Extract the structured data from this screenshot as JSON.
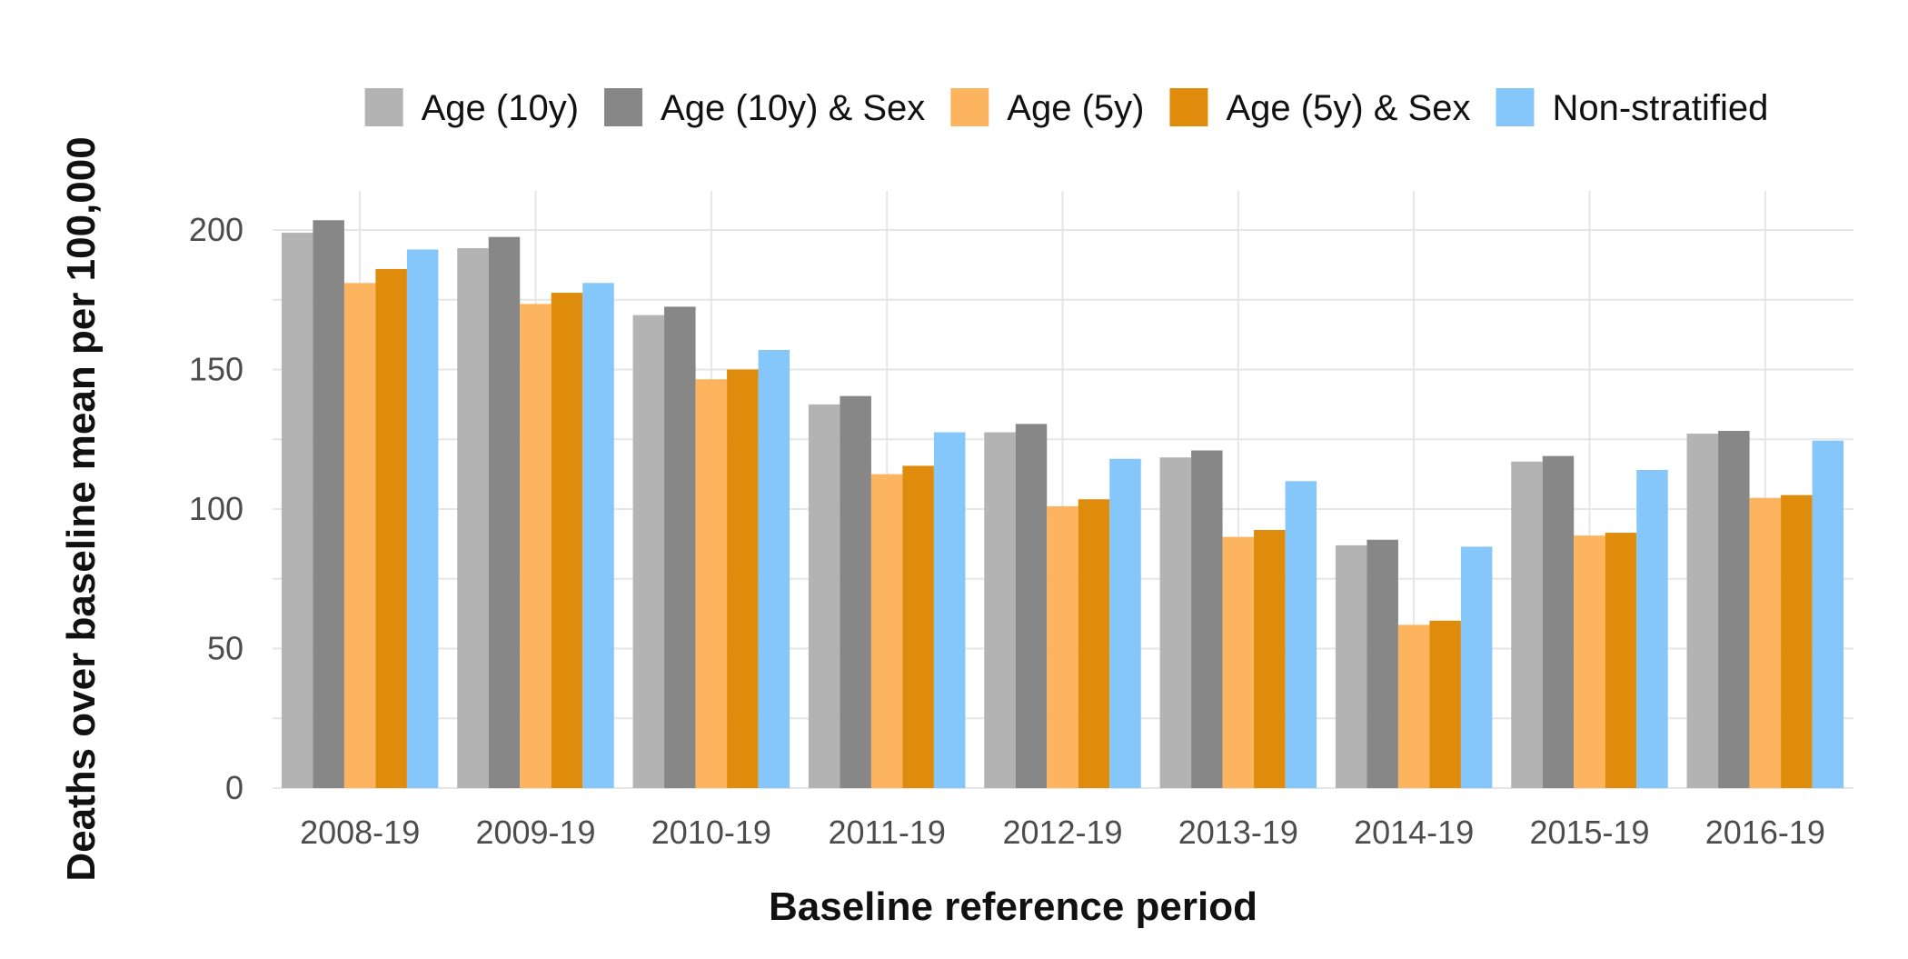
{
  "chart_data": {
    "type": "bar",
    "title": "",
    "xlabel": "Baseline reference period",
    "ylabel": "Deaths over baseline mean per 100,000",
    "categories": [
      "2008-19",
      "2009-19",
      "2010-19",
      "2011-19",
      "2012-19",
      "2013-19",
      "2014-19",
      "2015-19",
      "2016-19"
    ],
    "ylim": [
      0,
      214
    ],
    "yticks": [
      0,
      50,
      100,
      150,
      200
    ],
    "grid": true,
    "legend_position": "top",
    "series": [
      {
        "name": "Age (10y)",
        "color": "#b3b3b3",
        "values": [
          199,
          193.5,
          169.5,
          137.5,
          127.5,
          118.5,
          87,
          117,
          127
        ]
      },
      {
        "name": "Age (10y) & Sex",
        "color": "#878787",
        "values": [
          203.5,
          197.5,
          172.5,
          140.5,
          130.5,
          121,
          89,
          119,
          128
        ]
      },
      {
        "name": "Age (5y)",
        "color": "#fdb45e",
        "values": [
          181,
          173.5,
          146.5,
          112.5,
          101,
          90,
          58.5,
          90.5,
          104
        ]
      },
      {
        "name": "Age (5y) & Sex",
        "color": "#df8b0b",
        "values": [
          186,
          177.5,
          150,
          115.5,
          103.5,
          92.5,
          60,
          91.5,
          105
        ]
      },
      {
        "name": "Non-stratified",
        "color": "#85c6fb",
        "values": [
          193,
          181,
          157,
          127.5,
          118,
          110,
          86.5,
          114,
          124.5
        ]
      }
    ]
  }
}
